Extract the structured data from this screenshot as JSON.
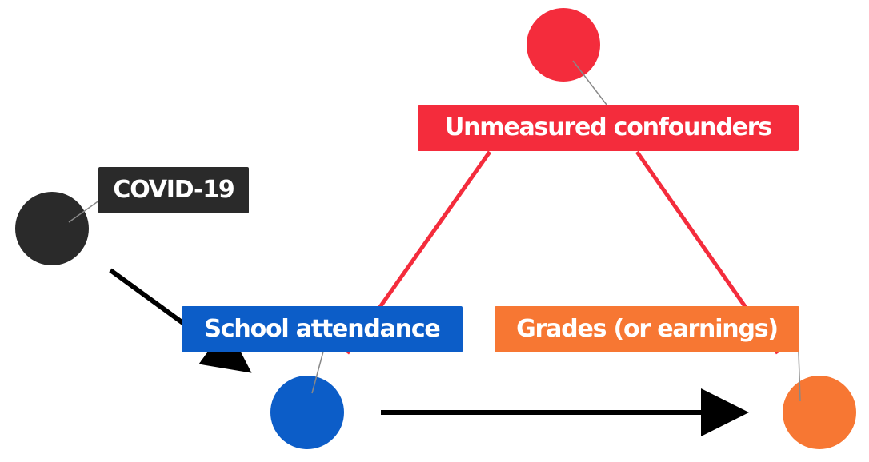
{
  "nodes": {
    "covid": {
      "label": "COVID-19",
      "color": "#2a2a2a"
    },
    "school_attendance": {
      "label": "School attendance",
      "color": "#0c5dc8"
    },
    "grades": {
      "label": "Grades (or earnings)",
      "color": "#f77733"
    },
    "confounders": {
      "label": "Unmeasured confounders",
      "color": "#f42c3c"
    }
  },
  "edges": [
    {
      "from": "covid",
      "to": "school_attendance",
      "style": "arrow",
      "color": "#000000"
    },
    {
      "from": "school_attendance",
      "to": "grades",
      "style": "arrow",
      "color": "#000000"
    },
    {
      "from": "confounders",
      "to": "school_attendance",
      "style": "line",
      "color": "#f42c3c"
    },
    {
      "from": "confounders",
      "to": "grades",
      "style": "line",
      "color": "#f42c3c"
    }
  ]
}
